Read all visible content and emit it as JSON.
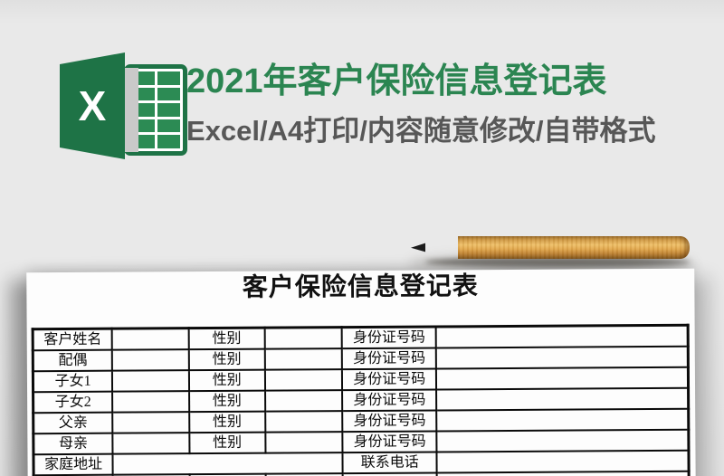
{
  "header": {
    "logo_letter": "X",
    "title": "2021年客户保险信息登记表",
    "subtitle": "Excel/A4打印/内容随意修改/自带格式"
  },
  "document": {
    "title": "客户保险信息登记表",
    "table": {
      "person_rows": [
        {
          "label": "客户姓名",
          "name_value": "",
          "gender_label": "性别",
          "gender_value": "",
          "id_label": "身份证号码",
          "id_value": ""
        },
        {
          "label": "配偶",
          "name_value": "",
          "gender_label": "性别",
          "gender_value": "",
          "id_label": "身份证号码",
          "id_value": ""
        },
        {
          "label": "子女1",
          "name_value": "",
          "gender_label": "性别",
          "gender_value": "",
          "id_label": "身份证号码",
          "id_value": ""
        },
        {
          "label": "子女2",
          "name_value": "",
          "gender_label": "性别",
          "gender_value": "",
          "id_label": "身份证号码",
          "id_value": ""
        },
        {
          "label": "父亲",
          "name_value": "",
          "gender_label": "性别",
          "gender_value": "",
          "id_label": "身份证号码",
          "id_value": ""
        },
        {
          "label": "母亲",
          "name_value": "",
          "gender_label": "性别",
          "gender_value": "",
          "id_label": "身份证号码",
          "id_value": ""
        }
      ],
      "contact_row": {
        "label": "家庭地址",
        "address_value": "",
        "phone_label": "联系电话",
        "phone_value": ""
      }
    }
  },
  "colors": {
    "excel_green": "#1e7346",
    "cell_green": "#2c8b54",
    "title_green": "#2b8551",
    "subtitle_gray": "#575757",
    "background_gray": "#e9e9e9"
  }
}
